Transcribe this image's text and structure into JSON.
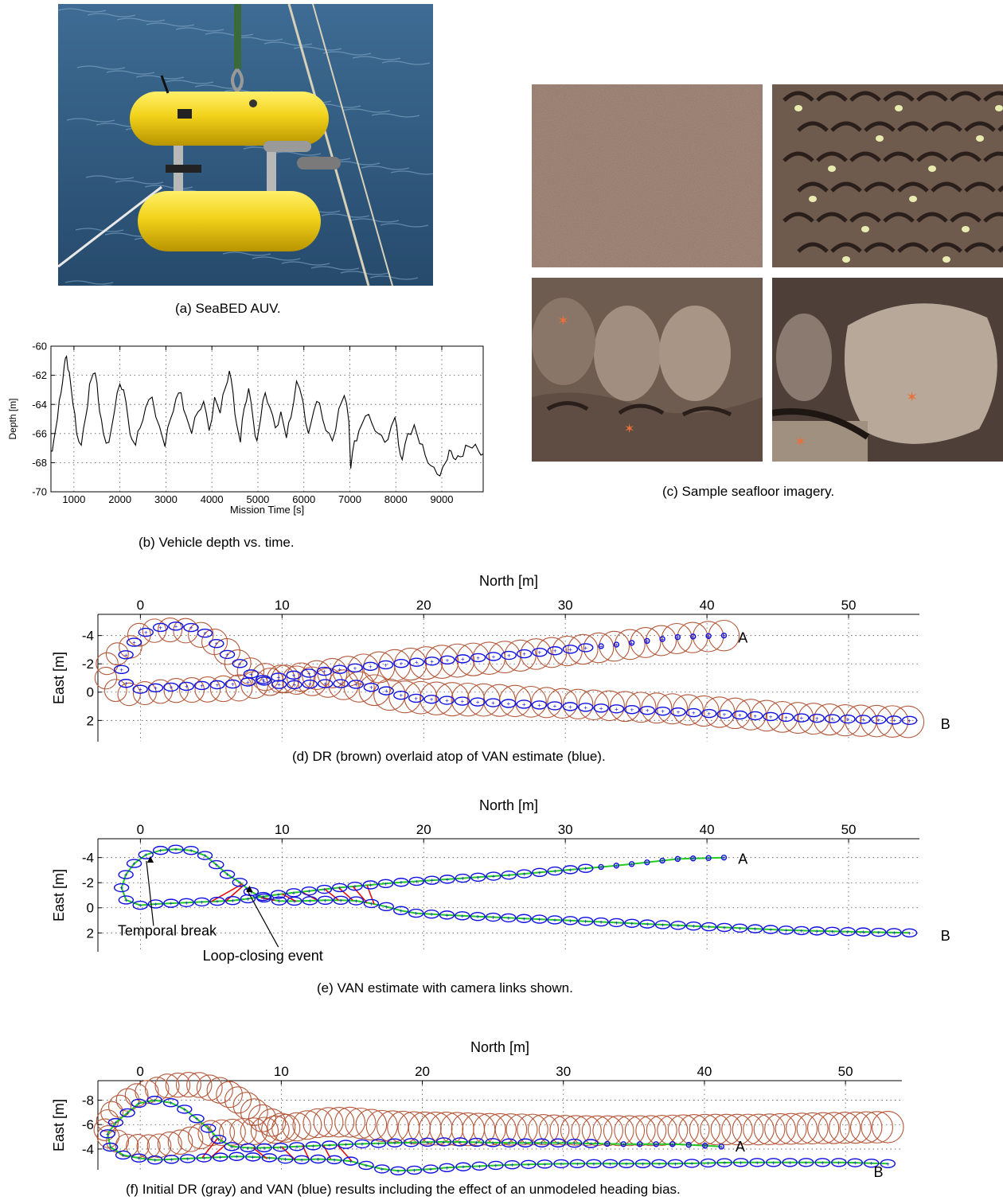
{
  "captions": {
    "a": "(a)  SeaBED AUV.",
    "b": "(b)  Vehicle depth vs. time.",
    "c": "(c)  Sample seafloor imagery.",
    "d": "(d)  DR (brown) overlaid atop of VAN estimate (blue).",
    "e": "(e)  VAN estimate with camera links shown.",
    "f": "(f)  Initial DR (gray) and VAN (blue) results including the effect of an unmodeled heading bias."
  },
  "colors": {
    "sea": "#2f5a80",
    "auv_yellow": "#f2d21a",
    "seafloor_sand": "#8f7566",
    "van_blue": "#1010e0",
    "dr_brown": "#b5583a",
    "link_green": "#22cc22",
    "link_red": "#e01010",
    "dr_gray": "#c4c4c4"
  },
  "chart_data": [
    {
      "id": "b",
      "type": "line",
      "xlabel": "Mission Time [s]",
      "ylabel": "Depth [m]",
      "xlim": [
        500,
        9900
      ],
      "ylim": [
        -70,
        -60
      ],
      "xticks": [
        1000,
        2000,
        3000,
        4000,
        5000,
        6000,
        7000,
        8000,
        9000
      ],
      "yticks": [
        -60,
        -62,
        -64,
        -66,
        -68,
        -70
      ],
      "grid": true,
      "series": [
        {
          "x": [
            500,
            560,
            640,
            720,
            790,
            840,
            900,
            980,
            1060,
            1160,
            1260,
            1340,
            1420,
            1500,
            1560,
            1640,
            1760,
            1880,
            2000,
            2080,
            2180,
            2260,
            2340,
            2440,
            2560,
            2700,
            2860,
            2980,
            3100,
            3220,
            3330,
            3440,
            3560,
            3700,
            3820,
            3940,
            4060,
            4180,
            4300,
            4380,
            4460,
            4540,
            4620,
            4700,
            4800,
            4900,
            4980,
            5060,
            5160,
            5260,
            5380,
            5500,
            5620,
            5720,
            5840,
            5980,
            6100,
            6220,
            6340,
            6480,
            6620,
            6760,
            6880,
            6980,
            7020,
            7100,
            7200,
            7340,
            7480,
            7620,
            7760,
            7900,
            7980,
            8060,
            8140,
            8260,
            8400,
            8520,
            8640,
            8760,
            8900,
            9020,
            9120,
            9200,
            9300,
            9400,
            9520,
            9660,
            9800,
            9900
          ],
          "y": [
            -67.2,
            -66.5,
            -65.0,
            -63.2,
            -61.3,
            -60.7,
            -61.8,
            -64.0,
            -66.0,
            -66.8,
            -64.8,
            -62.6,
            -61.9,
            -62.5,
            -64.5,
            -66.0,
            -66.6,
            -64.5,
            -62.6,
            -63.0,
            -65.0,
            -66.4,
            -66.8,
            -65.6,
            -64.2,
            -63.5,
            -65.5,
            -66.9,
            -65.0,
            -63.6,
            -63.2,
            -64.8,
            -66.0,
            -64.5,
            -63.8,
            -65.8,
            -63.5,
            -64.6,
            -62.8,
            -61.7,
            -63.2,
            -65.4,
            -66.6,
            -64.3,
            -62.9,
            -65.1,
            -66.5,
            -65.0,
            -63.2,
            -64.2,
            -65.6,
            -64.5,
            -66.3,
            -64.9,
            -62.4,
            -63.8,
            -66.0,
            -64.4,
            -63.9,
            -65.8,
            -66.5,
            -64.3,
            -63.4,
            -65.2,
            -68.4,
            -66.5,
            -65.8,
            -64.8,
            -65.3,
            -66.0,
            -66.6,
            -65.5,
            -64.9,
            -66.8,
            -67.8,
            -66.0,
            -65.4,
            -66.7,
            -67.5,
            -68.2,
            -68.8,
            -68.3,
            -67.8,
            -67.2,
            -67.8,
            -67.6,
            -66.8,
            -67.0,
            -67.2,
            -67.4
          ]
        }
      ]
    },
    {
      "id": "d",
      "type": "scatter",
      "xlabel": "North [m]",
      "ylabel": "East [m]",
      "xlim": [
        -3,
        55
      ],
      "ylim": [
        -5.5,
        3.5
      ],
      "xticks": [
        0,
        10,
        20,
        30,
        40,
        50
      ],
      "yticks": [
        -4,
        -2,
        0,
        2
      ],
      "grid": true,
      "annotations": [
        {
          "text": "A",
          "x": 42.2,
          "y": -3.5
        },
        {
          "text": "B",
          "x": 56.5,
          "y": 2.6
        }
      ],
      "series": [
        {
          "name": "DR",
          "path": [
            [
              41.2,
              -4.0
            ],
            [
              38,
              -3.8
            ],
            [
              34,
              -3.3
            ],
            [
              30,
              -2.9
            ],
            [
              26,
              -2.5
            ],
            [
              22,
              -2.2
            ],
            [
              18,
              -1.9
            ],
            [
              14,
              -1.4
            ],
            [
              10,
              -0.9
            ],
            [
              7,
              -0.3
            ],
            [
              5,
              -0.2
            ],
            [
              2,
              -0.1
            ],
            [
              0,
              0.1
            ],
            [
              -1.5,
              0.2
            ],
            [
              -2.6,
              -1.2
            ],
            [
              -2.2,
              -2.5
            ],
            [
              -0.8,
              -3.0
            ],
            [
              -0.3,
              -4.0
            ],
            [
              1.2,
              -4.4
            ],
            [
              3,
              -4.4
            ],
            [
              4.8,
              -3.9
            ],
            [
              6.2,
              -2.8
            ],
            [
              7.2,
              -1.7
            ],
            [
              9,
              -1.0
            ],
            [
              13,
              -0.7
            ],
            [
              16,
              -0.3
            ],
            [
              18,
              0.3
            ],
            [
              22,
              0.5
            ],
            [
              26,
              0.6
            ],
            [
              30,
              0.8
            ],
            [
              34,
              1.0
            ],
            [
              38,
              1.2
            ],
            [
              42,
              1.5
            ],
            [
              46,
              1.8
            ],
            [
              50,
              2.0
            ],
            [
              54.2,
              2.1
            ]
          ]
        },
        {
          "name": "VAN",
          "path": [
            [
              41.2,
              -4.0
            ],
            [
              38,
              -3.9
            ],
            [
              34,
              -3.4
            ],
            [
              30,
              -3.0
            ],
            [
              26,
              -2.6
            ],
            [
              22,
              -2.3
            ],
            [
              18,
              -2.0
            ],
            [
              14,
              -1.6
            ],
            [
              10,
              -1.1
            ],
            [
              8,
              -0.8
            ],
            [
              7,
              -0.6
            ],
            [
              5,
              -0.5
            ],
            [
              3,
              -0.4
            ],
            [
              1,
              -0.3
            ],
            [
              0,
              -0.2
            ],
            [
              -1.0,
              -0.6
            ],
            [
              -1.4,
              -1.3
            ],
            [
              -1.2,
              -2.2
            ],
            [
              -0.8,
              -3.2
            ],
            [
              0.3,
              -4.2
            ],
            [
              1.5,
              -4.6
            ],
            [
              3,
              -4.7
            ],
            [
              4.3,
              -4.4
            ],
            [
              5.3,
              -3.5
            ],
            [
              6.3,
              -2.5
            ],
            [
              7.2,
              -1.9
            ],
            [
              8.2,
              -0.9
            ],
            [
              10,
              -0.5
            ],
            [
              13,
              -0.6
            ],
            [
              15,
              -0.6
            ],
            [
              17,
              -0.2
            ],
            [
              19,
              0.4
            ],
            [
              22,
              0.6
            ],
            [
              26,
              0.8
            ],
            [
              30,
              1.0
            ],
            [
              34,
              1.2
            ],
            [
              38,
              1.4
            ],
            [
              42,
              1.6
            ],
            [
              46,
              1.8
            ],
            [
              50,
              1.9
            ],
            [
              54.3,
              2.0
            ]
          ]
        }
      ]
    },
    {
      "id": "e",
      "type": "scatter",
      "xlabel": "North [m]",
      "ylabel": "East [m]",
      "xlim": [
        -3,
        55
      ],
      "ylim": [
        -5.5,
        3.5
      ],
      "xticks": [
        0,
        10,
        20,
        30,
        40,
        50
      ],
      "yticks": [
        -4,
        -2,
        0,
        2
      ],
      "grid": true,
      "annotations": [
        {
          "text": "A",
          "x": 42.2,
          "y": -3.5
        },
        {
          "text": "B",
          "x": 56.5,
          "y": 2.6
        },
        {
          "text": "Temporal break",
          "x": -1.6,
          "y": 2.2
        },
        {
          "text": "Loop-closing event",
          "x": 4.4,
          "y": 4.2
        }
      ],
      "series": [
        {
          "name": "VAN",
          "path": [
            [
              41.2,
              -4.0
            ],
            [
              38,
              -3.9
            ],
            [
              34,
              -3.4
            ],
            [
              30,
              -3.0
            ],
            [
              26,
              -2.6
            ],
            [
              22,
              -2.3
            ],
            [
              18,
              -2.0
            ],
            [
              14,
              -1.6
            ],
            [
              10,
              -1.1
            ],
            [
              8,
              -0.8
            ],
            [
              7,
              -0.6
            ],
            [
              5,
              -0.5
            ],
            [
              3,
              -0.4
            ],
            [
              1,
              -0.3
            ],
            [
              0,
              -0.2
            ],
            [
              -1.0,
              -0.6
            ],
            [
              -1.4,
              -1.3
            ],
            [
              -1.2,
              -2.2
            ],
            [
              -0.8,
              -3.2
            ],
            [
              0.3,
              -4.2
            ],
            [
              1.5,
              -4.6
            ],
            [
              3,
              -4.7
            ],
            [
              4.3,
              -4.4
            ],
            [
              5.3,
              -3.5
            ],
            [
              6.3,
              -2.5
            ],
            [
              7.2,
              -1.9
            ],
            [
              8.2,
              -0.9
            ],
            [
              10,
              -0.5
            ],
            [
              13,
              -0.6
            ],
            [
              15,
              -0.6
            ],
            [
              17,
              -0.2
            ],
            [
              19,
              0.4
            ],
            [
              22,
              0.6
            ],
            [
              26,
              0.8
            ],
            [
              30,
              1.0
            ],
            [
              34,
              1.2
            ],
            [
              38,
              1.4
            ],
            [
              42,
              1.6
            ],
            [
              46,
              1.8
            ],
            [
              50,
              1.9
            ],
            [
              54.3,
              2.0
            ]
          ]
        }
      ]
    },
    {
      "id": "f",
      "type": "scatter",
      "xlabel": "North [m]",
      "ylabel": "East [m]",
      "xlim": [
        -3,
        54
      ],
      "ylim": [
        -9.6,
        -2.3
      ],
      "xticks": [
        0,
        10,
        20,
        30,
        40,
        50
      ],
      "yticks": [
        -8,
        -6,
        -4
      ],
      "grid": true,
      "annotations": [
        {
          "text": "A",
          "x": 42.2,
          "y": -3.8
        },
        {
          "text": "B",
          "x": 52,
          "y": -1.7
        }
      ],
      "series": [
        {
          "name": "DR",
          "path": [
            [
              53,
              -5.8
            ],
            [
              48,
              -5.7
            ],
            [
              44,
              -5.6
            ],
            [
              40,
              -5.6
            ],
            [
              36,
              -5.5
            ],
            [
              32,
              -5.5
            ],
            [
              28,
              -5.6
            ],
            [
              24,
              -5.6
            ],
            [
              20,
              -5.7
            ],
            [
              17,
              -5.9
            ],
            [
              15,
              -6.2
            ],
            [
              13,
              -6.2
            ],
            [
              11,
              -5.8
            ],
            [
              9,
              -5.5
            ],
            [
              7,
              -5.4
            ],
            [
              5,
              -5.3
            ],
            [
              3,
              -4.6
            ],
            [
              1,
              -4.2
            ],
            [
              -1,
              -4.3
            ],
            [
              -2.6,
              -5.2
            ],
            [
              -2.2,
              -6.8
            ],
            [
              -0.6,
              -8.3
            ],
            [
              2,
              -9.2
            ],
            [
              4,
              -9.3
            ],
            [
              6,
              -8.7
            ],
            [
              7.5,
              -7.6
            ],
            [
              8.5,
              -6.6
            ],
            [
              10,
              -5.8
            ]
          ]
        },
        {
          "name": "VAN",
          "path": [
            [
              41.2,
              -4.2
            ],
            [
              38,
              -4.4
            ],
            [
              34,
              -4.4
            ],
            [
              30,
              -4.5
            ],
            [
              26,
              -4.5
            ],
            [
              22,
              -4.6
            ],
            [
              18,
              -4.5
            ],
            [
              15,
              -4.4
            ],
            [
              13,
              -4.3
            ],
            [
              11,
              -4.2
            ],
            [
              9,
              -4.1
            ],
            [
              7,
              -4.1
            ],
            [
              6,
              -4.3
            ],
            [
              5.2,
              -5.2
            ],
            [
              4.6,
              -6.0
            ],
            [
              3.5,
              -6.9
            ],
            [
              2.7,
              -7.7
            ],
            [
              1,
              -8.0
            ],
            [
              -0.3,
              -7.7
            ],
            [
              -1.2,
              -6.6
            ],
            [
              -2.2,
              -5.8
            ],
            [
              -2.4,
              -4.8
            ],
            [
              -2.0,
              -3.9
            ],
            [
              -1,
              -3.4
            ],
            [
              1,
              -3.1
            ],
            [
              3,
              -3.2
            ],
            [
              5,
              -3.3
            ],
            [
              7,
              -3.4
            ],
            [
              9,
              -3.3
            ],
            [
              11,
              -3.1
            ],
            [
              13,
              -3.2
            ],
            [
              15,
              -3.0
            ],
            [
              16.5,
              -2.5
            ],
            [
              18,
              -2.2
            ],
            [
              20,
              -2.3
            ],
            [
              22,
              -2.5
            ],
            [
              26,
              -2.7
            ],
            [
              30,
              -2.8
            ],
            [
              34,
              -2.8
            ],
            [
              38,
              -2.8
            ],
            [
              42,
              -2.9
            ],
            [
              46,
              -2.9
            ],
            [
              50,
              -2.9
            ],
            [
              53,
              -2.8
            ]
          ]
        }
      ]
    }
  ]
}
